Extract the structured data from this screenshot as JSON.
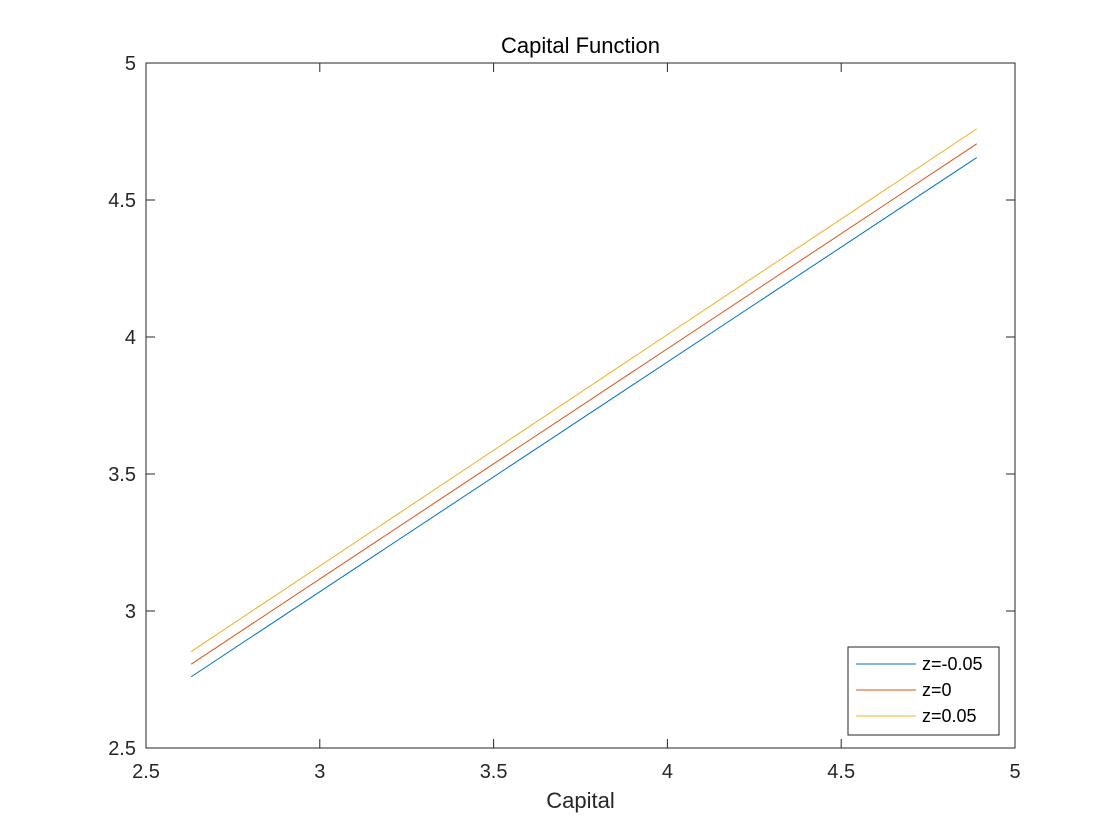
{
  "chart_data": {
    "type": "line",
    "title": "Capital Function",
    "xlabel": "Capital",
    "ylabel": "",
    "xlim": [
      2.5,
      5
    ],
    "ylim": [
      2.5,
      5
    ],
    "xticks": [
      2.5,
      3,
      3.5,
      4,
      4.5,
      5
    ],
    "yticks": [
      2.5,
      3,
      3.5,
      4,
      4.5,
      5
    ],
    "xtick_labels": [
      "2.5",
      "3",
      "3.5",
      "4",
      "4.5",
      "5"
    ],
    "ytick_labels": [
      "2.5",
      "3",
      "3.5",
      "4",
      "4.5",
      "5"
    ],
    "grid": false,
    "box": true,
    "legend_position": "bottom-right",
    "series": [
      {
        "name": "z=-0.05",
        "color": "#0072bd",
        "x": [
          2.63,
          4.89
        ],
        "y": [
          2.76,
          4.655
        ]
      },
      {
        "name": "z=0",
        "color": "#d95319",
        "x": [
          2.63,
          4.89
        ],
        "y": [
          2.806,
          4.705
        ]
      },
      {
        "name": "z=0.05",
        "color": "#edb120",
        "x": [
          2.63,
          4.89
        ],
        "y": [
          2.852,
          4.76
        ]
      }
    ]
  }
}
